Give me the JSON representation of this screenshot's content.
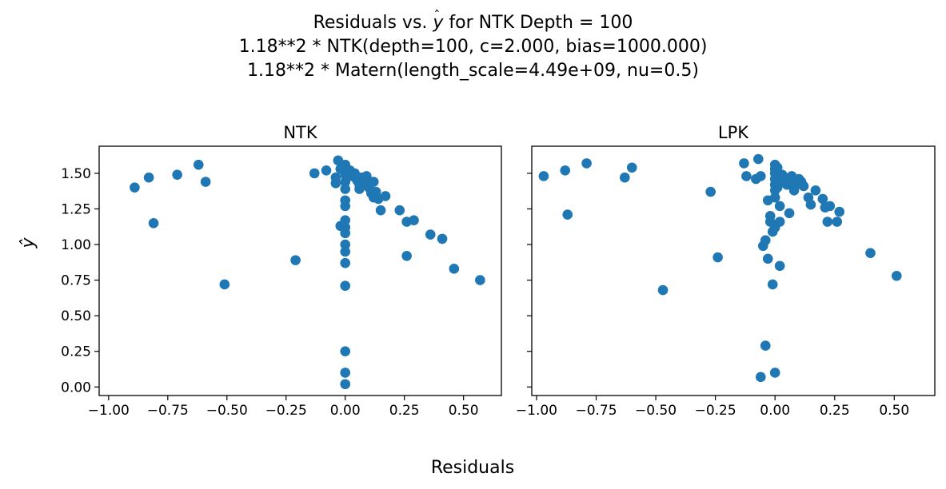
{
  "figure": {
    "title_prefix": "Residuals vs. ",
    "title_symbol": "y",
    "title_suffix": " for NTK Depth = 100",
    "subtitle_1": "1.18**2 * NTK(depth=100, c=2.000, bias=1000.000)",
    "subtitle_2": "1.18**2 * Matern(length_scale=4.49e+09, nu=0.5)",
    "xlabel": "Residuals",
    "ylabel": "ŷ",
    "marker_color": "#1f77b4"
  },
  "chart_data": [
    {
      "type": "scatter",
      "title": "NTK",
      "xlim": [
        -1.04,
        0.66
      ],
      "ylim": [
        -0.06,
        1.69
      ],
      "xticks": [
        -1.0,
        -0.75,
        -0.5,
        -0.25,
        0.0,
        0.25,
        0.5
      ],
      "xtick_labels": [
        "−1.00",
        "−0.75",
        "−0.50",
        "−0.25",
        "0.00",
        "0.25",
        "0.50"
      ],
      "yticks": [
        0.0,
        0.25,
        0.5,
        0.75,
        1.0,
        1.25,
        1.5
      ],
      "ytick_labels": [
        "0.00",
        "0.25",
        "0.50",
        "0.75",
        "1.00",
        "1.25",
        "1.50"
      ],
      "points": [
        [
          -0.89,
          1.4
        ],
        [
          -0.83,
          1.47
        ],
        [
          -0.81,
          1.15
        ],
        [
          -0.71,
          1.49
        ],
        [
          -0.62,
          1.56
        ],
        [
          -0.59,
          1.44
        ],
        [
          -0.51,
          0.72
        ],
        [
          -0.21,
          0.89
        ],
        [
          -0.13,
          1.5
        ],
        [
          -0.08,
          1.52
        ],
        [
          -0.04,
          1.43
        ],
        [
          -0.04,
          1.47
        ],
        [
          -0.03,
          1.59
        ],
        [
          -0.02,
          1.53
        ],
        [
          -0.02,
          1.13
        ],
        [
          0.0,
          1.56
        ],
        [
          0.0,
          1.49
        ],
        [
          0.0,
          1.44
        ],
        [
          0.0,
          1.39
        ],
        [
          0.0,
          1.31
        ],
        [
          0.0,
          1.27
        ],
        [
          0.0,
          1.17
        ],
        [
          0.0,
          1.12
        ],
        [
          0.0,
          1.08
        ],
        [
          0.0,
          1.0
        ],
        [
          0.0,
          0.95
        ],
        [
          0.0,
          0.87
        ],
        [
          0.0,
          0.71
        ],
        [
          0.0,
          0.25
        ],
        [
          0.0,
          0.1
        ],
        [
          0.0,
          0.02
        ],
        [
          0.02,
          1.52
        ],
        [
          0.03,
          1.48
        ],
        [
          0.04,
          1.5
        ],
        [
          0.05,
          1.45
        ],
        [
          0.06,
          1.42
        ],
        [
          0.06,
          1.39
        ],
        [
          0.07,
          1.47
        ],
        [
          0.08,
          1.43
        ],
        [
          0.09,
          1.48
        ],
        [
          0.1,
          1.4
        ],
        [
          0.11,
          1.36
        ],
        [
          0.12,
          1.44
        ],
        [
          0.12,
          1.33
        ],
        [
          0.13,
          1.37
        ],
        [
          0.14,
          1.32
        ],
        [
          0.15,
          1.24
        ],
        [
          0.17,
          1.34
        ],
        [
          0.23,
          1.24
        ],
        [
          0.26,
          1.16
        ],
        [
          0.26,
          0.92
        ],
        [
          0.29,
          1.17
        ],
        [
          0.36,
          1.07
        ],
        [
          0.41,
          1.04
        ],
        [
          0.46,
          0.83
        ],
        [
          0.57,
          0.75
        ]
      ]
    },
    {
      "type": "scatter",
      "title": "LPK",
      "xlim": [
        -1.02,
        0.67
      ],
      "ylim": [
        -0.06,
        1.69
      ],
      "xticks": [
        -1.0,
        -0.75,
        -0.5,
        -0.25,
        0.0,
        0.25,
        0.5
      ],
      "xtick_labels": [
        "−1.00",
        "−0.75",
        "−0.50",
        "−0.25",
        "0.00",
        "0.25",
        "0.50"
      ],
      "yticks": [
        0.0,
        0.25,
        0.5,
        0.75,
        1.0,
        1.25,
        1.5
      ],
      "ytick_labels": [
        "",
        "",
        "",
        "",
        "",
        "",
        ""
      ],
      "points": [
        [
          -0.97,
          1.48
        ],
        [
          -0.88,
          1.52
        ],
        [
          -0.87,
          1.21
        ],
        [
          -0.79,
          1.57
        ],
        [
          -0.63,
          1.47
        ],
        [
          -0.6,
          1.54
        ],
        [
          -0.47,
          0.68
        ],
        [
          -0.27,
          1.37
        ],
        [
          -0.24,
          0.91
        ],
        [
          -0.13,
          1.57
        ],
        [
          -0.12,
          1.48
        ],
        [
          -0.08,
          1.46
        ],
        [
          -0.07,
          1.6
        ],
        [
          -0.06,
          1.48
        ],
        [
          -0.06,
          0.07
        ],
        [
          -0.05,
          0.99
        ],
        [
          -0.04,
          0.29
        ],
        [
          -0.04,
          1.03
        ],
        [
          -0.03,
          1.31
        ],
        [
          -0.03,
          0.9
        ],
        [
          -0.02,
          1.2
        ],
        [
          -0.02,
          1.16
        ],
        [
          -0.01,
          1.09
        ],
        [
          -0.01,
          0.72
        ],
        [
          0.0,
          1.56
        ],
        [
          0.0,
          1.53
        ],
        [
          0.0,
          1.5
        ],
        [
          0.0,
          1.46
        ],
        [
          0.0,
          1.42
        ],
        [
          0.0,
          1.38
        ],
        [
          0.0,
          1.33
        ],
        [
          0.0,
          1.12
        ],
        [
          0.0,
          0.1
        ],
        [
          0.01,
          1.54
        ],
        [
          0.01,
          1.4
        ],
        [
          0.02,
          1.44
        ],
        [
          0.02,
          1.27
        ],
        [
          0.02,
          1.16
        ],
        [
          0.02,
          0.85
        ],
        [
          0.03,
          1.49
        ],
        [
          0.04,
          1.47
        ],
        [
          0.05,
          1.42
        ],
        [
          0.06,
          1.45
        ],
        [
          0.06,
          1.22
        ],
        [
          0.07,
          1.48
        ],
        [
          0.08,
          1.38
        ],
        [
          0.09,
          1.42
        ],
        [
          0.1,
          1.46
        ],
        [
          0.11,
          1.44
        ],
        [
          0.12,
          1.41
        ],
        [
          0.14,
          1.33
        ],
        [
          0.15,
          1.28
        ],
        [
          0.17,
          1.38
        ],
        [
          0.2,
          1.32
        ],
        [
          0.21,
          1.26
        ],
        [
          0.22,
          1.16
        ],
        [
          0.23,
          1.27
        ],
        [
          0.26,
          1.16
        ],
        [
          0.27,
          1.23
        ],
        [
          0.4,
          0.94
        ],
        [
          0.51,
          0.78
        ]
      ]
    }
  ]
}
